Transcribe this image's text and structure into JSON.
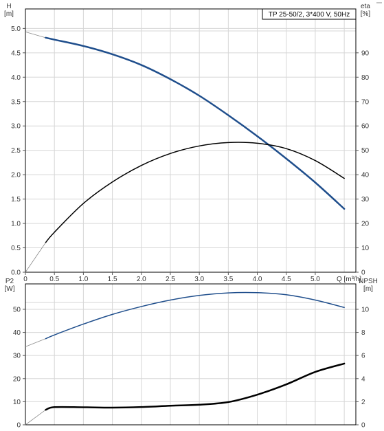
{
  "chart_data": [
    {
      "type": "line",
      "title": "TP 25-50/2, 3*400 V, 50Hz",
      "xlabel": "Q [m³/h]",
      "ylabel": "H\n[m]",
      "y2label": "eta\n[%]",
      "x_ticks": [
        "0",
        "0.5",
        "1.0",
        "1.5",
        "2.0",
        "2.5",
        "3.0",
        "3.5",
        "4.0",
        "4.5",
        "5.0"
      ],
      "xlim": [
        0,
        5.7
      ],
      "ylim": [
        0,
        5.4
      ],
      "y2lim": [
        0,
        108
      ],
      "y_ticks": [
        "0.0",
        "0.5",
        "1.0",
        "1.5",
        "2.0",
        "2.5",
        "3.0",
        "3.5",
        "4.0",
        "4.5",
        "5.0"
      ],
      "y2_ticks": [
        "0",
        "10",
        "20",
        "30",
        "40",
        "50",
        "60",
        "70",
        "80",
        "90"
      ],
      "grid": true,
      "series": [
        {
          "key": "head",
          "axis": "left",
          "color": "#1f4e8c",
          "width": 2.5,
          "x": [
            0.0,
            0.35,
            0.5,
            1.0,
            1.5,
            2.0,
            2.5,
            3.0,
            3.5,
            4.0,
            4.5,
            5.0,
            5.5
          ],
          "y": [
            4.93,
            4.81,
            4.77,
            4.64,
            4.47,
            4.25,
            3.96,
            3.62,
            3.22,
            2.79,
            2.33,
            1.84,
            1.3
          ],
          "dashed_until": 0.35
        },
        {
          "key": "efficiency",
          "axis": "right",
          "color": "#000000",
          "width": 1.5,
          "x": [
            0.0,
            0.35,
            0.5,
            1.0,
            1.5,
            2.0,
            2.5,
            3.0,
            3.5,
            4.0,
            4.5,
            5.0,
            5.5
          ],
          "y": [
            0.0,
            12.2,
            16.4,
            28.2,
            37.0,
            43.8,
            48.7,
            51.8,
            53.2,
            52.9,
            50.7,
            45.8,
            38.5
          ],
          "dashed_until": 0.35
        }
      ]
    },
    {
      "type": "line",
      "xlim": [
        0,
        5.7
      ],
      "ylabel": "P2\n[W]",
      "y2label": "NPSH\n[m]",
      "ylim": [
        0,
        60
      ],
      "y2lim": [
        0,
        12
      ],
      "y_ticks": [
        "0",
        "10",
        "20",
        "30",
        "40",
        "50"
      ],
      "y2_ticks": [
        "0",
        "2",
        "4",
        "6",
        "8",
        "10"
      ],
      "grid": true,
      "series": [
        {
          "key": "power",
          "axis": "left",
          "color": "#1f4e8c",
          "width": 1.5,
          "x": [
            0.0,
            0.35,
            0.5,
            1.0,
            1.5,
            2.0,
            2.5,
            3.0,
            3.5,
            4.0,
            4.5,
            5.0,
            5.5
          ],
          "y": [
            33.8,
            37.3,
            38.9,
            43.6,
            47.8,
            51.2,
            54.0,
            56.0,
            57.1,
            57.2,
            56.3,
            54.0,
            50.8
          ],
          "dashed_until": 0.35
        },
        {
          "key": "npsh",
          "axis": "right",
          "color": "#000000",
          "width": 2.5,
          "x": [
            0.0,
            0.35,
            0.5,
            1.0,
            1.5,
            2.0,
            2.5,
            3.0,
            3.5,
            4.0,
            4.5,
            5.0,
            5.5
          ],
          "y": [
            0.0,
            1.3,
            1.53,
            1.52,
            1.49,
            1.54,
            1.65,
            1.74,
            1.97,
            2.61,
            3.5,
            4.58,
            5.3
          ],
          "dashed_until": 0.35
        }
      ]
    }
  ]
}
